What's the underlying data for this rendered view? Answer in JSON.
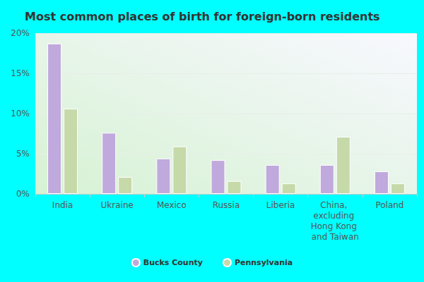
{
  "chart_data": {
    "type": "bar",
    "title": "Most common places of birth for foreign-born residents",
    "categories": [
      "India",
      "Ukraine",
      "Mexico",
      "Russia",
      "Liberia",
      "China, excluding Hong Kong and Taiwan",
      "Poland"
    ],
    "series": [
      {
        "name": "Bucks County",
        "color": "#c0a9dc",
        "values": [
          18.7,
          7.6,
          4.4,
          4.2,
          3.6,
          3.6,
          2.8
        ]
      },
      {
        "name": "Pennsylvania",
        "color": "#c6d9a9",
        "values": [
          10.6,
          2.1,
          5.9,
          1.6,
          1.3,
          7.1,
          1.3
        ]
      }
    ],
    "ylim": [
      0,
      20
    ],
    "yticks": [
      {
        "value": 0,
        "label": "0%"
      },
      {
        "value": 5,
        "label": "5%"
      },
      {
        "value": 10,
        "label": "10%"
      },
      {
        "value": 15,
        "label": "15%"
      },
      {
        "value": 20,
        "label": "20%"
      }
    ],
    "grid": true,
    "legend": "bottom"
  }
}
